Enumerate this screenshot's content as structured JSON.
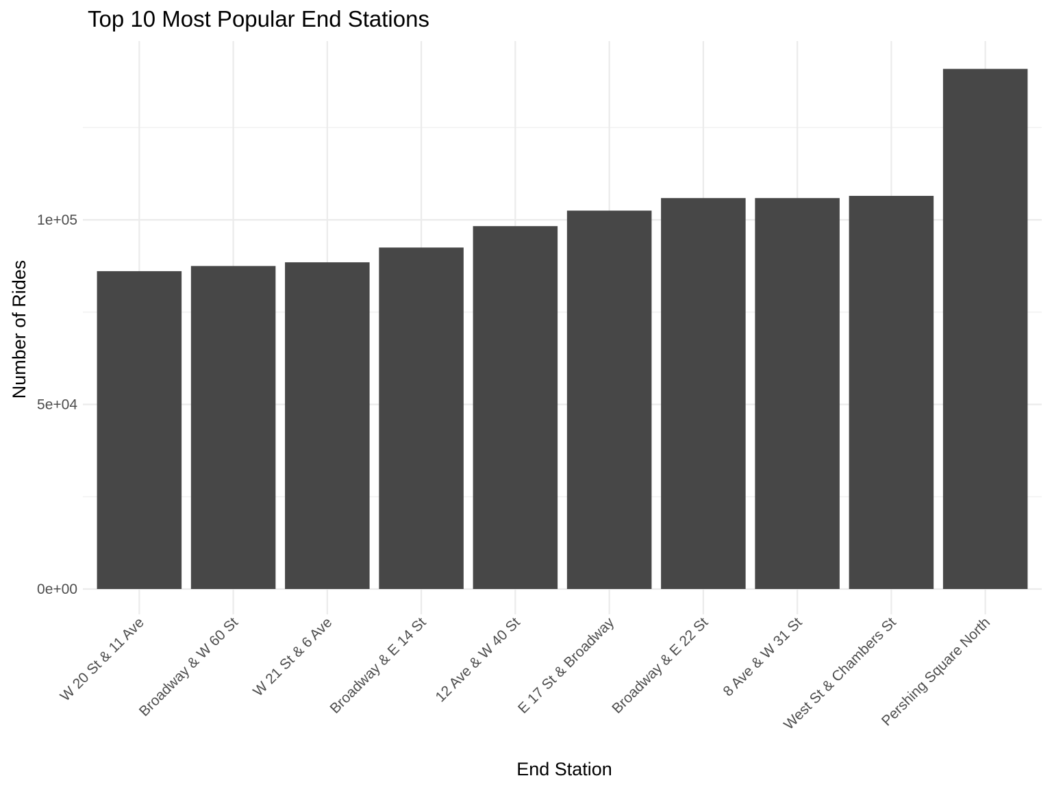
{
  "chart_data": {
    "type": "bar",
    "title": "Top 10 Most Popular End Stations",
    "xlabel": "End Station",
    "ylabel": "Number of Rides",
    "categories": [
      "W 20 St & 11 Ave",
      "Broadway & W 60 St",
      "W 21 St & 6 Ave",
      "Broadway & E 14 St",
      "12 Ave & W 40 St",
      "E 17 St & Broadway",
      "Broadway & E 22 St",
      "8 Ave & W 31 St",
      "West St & Chambers St",
      "Pershing Square North"
    ],
    "values": [
      86100,
      87500,
      88500,
      92500,
      98300,
      102500,
      105900,
      105900,
      106500,
      140900
    ],
    "ylim": [
      0,
      147000
    ],
    "yticks": [
      0,
      50000,
      100000
    ],
    "ytick_labels": [
      "0e+00",
      "5e+04",
      "1e+05"
    ],
    "grid": true,
    "bar_color": "#474747",
    "grid_color": "#ebebeb"
  }
}
